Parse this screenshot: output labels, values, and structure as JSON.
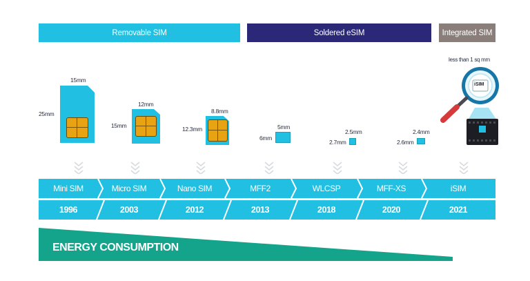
{
  "categories": {
    "removable": "Removable SIM",
    "soldered": "Soldered eSIM",
    "integrated": "Integrated SIM"
  },
  "dimensions": {
    "mini_w": "15mm",
    "mini_h": "25mm",
    "micro_w": "12mm",
    "micro_h": "15mm",
    "nano_w": "8.8mm",
    "nano_h": "12.3mm",
    "mff2_w": "5mm",
    "mff2_h": "6mm",
    "wlcsp_w": "2.5mm",
    "wlcsp_h": "2.7mm",
    "mffxs_w": "2.4mm",
    "mffxs_h": "2.6mm",
    "isim_size": "less than 1 sq mm",
    "isim_badge": "iSIM"
  },
  "timeline": [
    {
      "name": "Mini SIM",
      "year": "1996"
    },
    {
      "name": "Micro SIM",
      "year": "2003"
    },
    {
      "name": "Nano SIM",
      "year": "2012"
    },
    {
      "name": "MFF2",
      "year": "2013"
    },
    {
      "name": "WLCSP",
      "year": "2018"
    },
    {
      "name": "MFF-XS",
      "year": "2020"
    },
    {
      "name": "iSIM",
      "year": "2021"
    }
  ],
  "energy_label": "ENERGY CONSUMPTION",
  "colors": {
    "cyan": "#21c0e3",
    "navy": "#2a2877",
    "taupe": "#8a7e7a",
    "energy_green": "#14a38b",
    "chip_gold": "#e8a312"
  }
}
